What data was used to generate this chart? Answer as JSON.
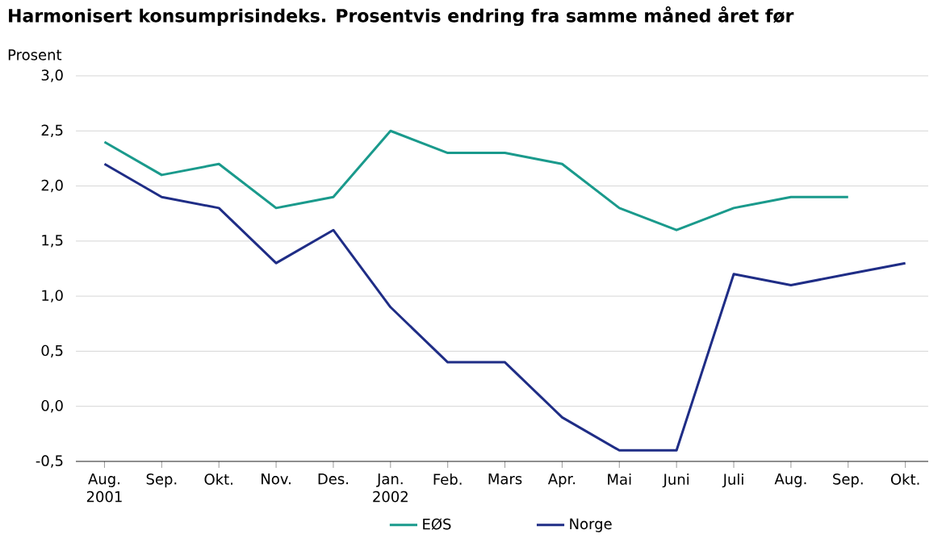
{
  "chart_data": {
    "type": "line",
    "title": "Harmonisert konsumprisindeks. Prosentvis endring fra samme måned året før",
    "ylabel": "Prosent",
    "categories": [
      "Aug. 2001",
      "Sep.",
      "Okt.",
      "Nov.",
      "Des.",
      "Jan. 2002",
      "Feb.",
      "Mars",
      "Apr.",
      "Mai",
      "Juni",
      "Juli",
      "Aug.",
      "Sep.",
      "Okt."
    ],
    "series": [
      {
        "name": "EØS",
        "color": "#1a9a8c",
        "values": [
          2.4,
          2.1,
          2.2,
          1.8,
          1.9,
          2.5,
          2.3,
          2.3,
          2.2,
          1.8,
          1.6,
          1.8,
          1.9,
          1.9,
          null
        ]
      },
      {
        "name": "Norge",
        "color": "#1f2d86",
        "values": [
          2.2,
          1.9,
          1.8,
          1.3,
          1.6,
          0.9,
          0.4,
          0.4,
          -0.1,
          -0.4,
          -0.4,
          1.2,
          1.1,
          1.2,
          1.3
        ]
      }
    ],
    "ylim": [
      -0.5,
      3.0
    ],
    "yticks": [
      {
        "value": -0.5,
        "label": "-0,5"
      },
      {
        "value": 0.0,
        "label": "0,0"
      },
      {
        "value": 0.5,
        "label": "0,5"
      },
      {
        "value": 1.0,
        "label": "1,0"
      },
      {
        "value": 1.5,
        "label": "1,5"
      },
      {
        "value": 2.0,
        "label": "2,0"
      },
      {
        "value": 2.5,
        "label": "2,5"
      },
      {
        "value": 3.0,
        "label": "3,0"
      }
    ],
    "grid": "y",
    "legend": "bottom",
    "marker": "none",
    "line_style": "solid"
  }
}
